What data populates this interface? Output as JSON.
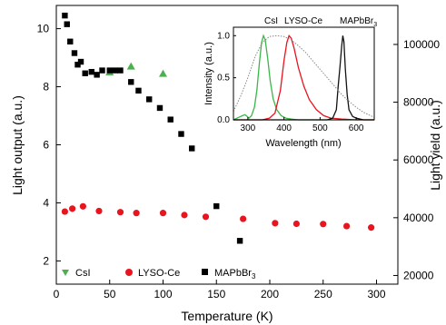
{
  "chart_data": [
    {
      "type": "scatter",
      "xlabel": "Temperature (K)",
      "ylabel": "Light output (a.u.)",
      "y2label": "Light yield (a.u.)",
      "xlim": [
        0,
        320
      ],
      "ylim": [
        1.2,
        10.8
      ],
      "y2lim": [
        17000,
        113500
      ],
      "xticks": [
        "0",
        "50",
        "100",
        "150",
        "200",
        "250",
        "300"
      ],
      "yticks": [
        "2",
        "4",
        "6",
        "8",
        "10"
      ],
      "y2ticks": [
        "20000",
        "40000",
        "60000",
        "80000",
        "100000"
      ],
      "series": [
        {
          "name": "CsI",
          "axis": "left",
          "color": "#4caf50",
          "marker": "triangle",
          "x": [
            50,
            70,
            100
          ],
          "y": [
            8.5,
            8.7,
            8.45
          ]
        },
        {
          "name": "LYSO-Ce",
          "axis": "left",
          "color": "#e8141e",
          "marker": "circle",
          "x": [
            8,
            15,
            25,
            40,
            60,
            75,
            100,
            120,
            140,
            175,
            205,
            225,
            250,
            272,
            295
          ],
          "y": [
            3.7,
            3.8,
            3.88,
            3.72,
            3.68,
            3.65,
            3.65,
            3.58,
            3.52,
            3.45,
            3.3,
            3.28,
            3.27,
            3.2,
            3.15
          ]
        },
        {
          "name": "MAPbBr3",
          "axis": "right",
          "color": "#000000",
          "marker": "square",
          "x": [
            8,
            10,
            13,
            17,
            20,
            23,
            27,
            33,
            38,
            43,
            50,
            55,
            60,
            70,
            77,
            87,
            97,
            107,
            117,
            127,
            150,
            172
          ],
          "y": [
            110000,
            107000,
            101000,
            97000,
            93000,
            94000,
            90000,
            90500,
            89500,
            91000,
            91000,
            91000,
            91000,
            87000,
            84000,
            81000,
            78000,
            74000,
            69000,
            64000,
            44000,
            32000
          ]
        }
      ],
      "legend": {
        "placement": "bottom-left",
        "labels": [
          "CsI",
          "LYSO-Ce",
          "MAPbBr",
          "3"
        ]
      }
    },
    {
      "type": "line",
      "inset": true,
      "xlabel": "Wavelength (nm)",
      "ylabel": "Intensity (a.u.)",
      "xlim": [
        260,
        650
      ],
      "ylim": [
        0,
        1.1
      ],
      "xticks": [
        "300",
        "400",
        "500",
        "600"
      ],
      "yticks": [
        "0.0",
        "0.5",
        "1.0"
      ],
      "annotations": [
        "CsI",
        "LYSO-Ce",
        "MAPbBr",
        "3"
      ],
      "series": [
        {
          "name": "CsI",
          "color": "#3cb64a",
          "x": [
            260,
            275,
            285,
            292,
            298,
            303,
            310,
            318,
            325,
            332,
            338,
            343,
            348,
            355,
            362,
            370,
            380,
            392,
            405,
            420,
            440,
            470,
            520,
            600,
            650
          ],
          "y": [
            0.0,
            0.03,
            0.05,
            0.06,
            0.04,
            0.02,
            0.05,
            0.15,
            0.35,
            0.68,
            0.92,
            1.0,
            0.95,
            0.72,
            0.46,
            0.25,
            0.12,
            0.05,
            0.02,
            0.01,
            0.0,
            0.0,
            0.0,
            0.0,
            0.0
          ]
        },
        {
          "name": "LYSO-Ce",
          "color": "#e8141e",
          "x": [
            260,
            340,
            360,
            375,
            390,
            400,
            408,
            414,
            420,
            428,
            440,
            455,
            470,
            490,
            510,
            530,
            560,
            600,
            650
          ],
          "y": [
            0.0,
            0.0,
            0.02,
            0.08,
            0.35,
            0.7,
            0.92,
            1.0,
            0.97,
            0.85,
            0.62,
            0.4,
            0.24,
            0.12,
            0.05,
            0.02,
            0.01,
            0.0,
            0.0
          ]
        },
        {
          "name": "MAPbBr3",
          "color": "#111111",
          "x": [
            260,
            520,
            535,
            545,
            550,
            555,
            560,
            563,
            566,
            570,
            575,
            580,
            590,
            600,
            620,
            650
          ],
          "y": [
            0.0,
            0.0,
            0.02,
            0.12,
            0.4,
            0.62,
            0.88,
            1.0,
            0.93,
            0.6,
            0.3,
            0.12,
            0.04,
            0.02,
            0.0,
            0.0
          ]
        },
        {
          "name": "dotted",
          "color": "#888888",
          "dashed": true,
          "x": [
            260,
            280,
            300,
            320,
            340,
            360,
            380,
            400,
            420,
            440,
            460,
            480,
            500,
            520,
            540,
            560,
            580,
            600,
            620,
            640,
            650
          ],
          "y": [
            0.1,
            0.28,
            0.5,
            0.75,
            0.92,
            0.99,
            1.0,
            0.99,
            0.95,
            0.88,
            0.8,
            0.7,
            0.6,
            0.5,
            0.4,
            0.3,
            0.22,
            0.15,
            0.09,
            0.05,
            0.03
          ]
        }
      ]
    }
  ]
}
